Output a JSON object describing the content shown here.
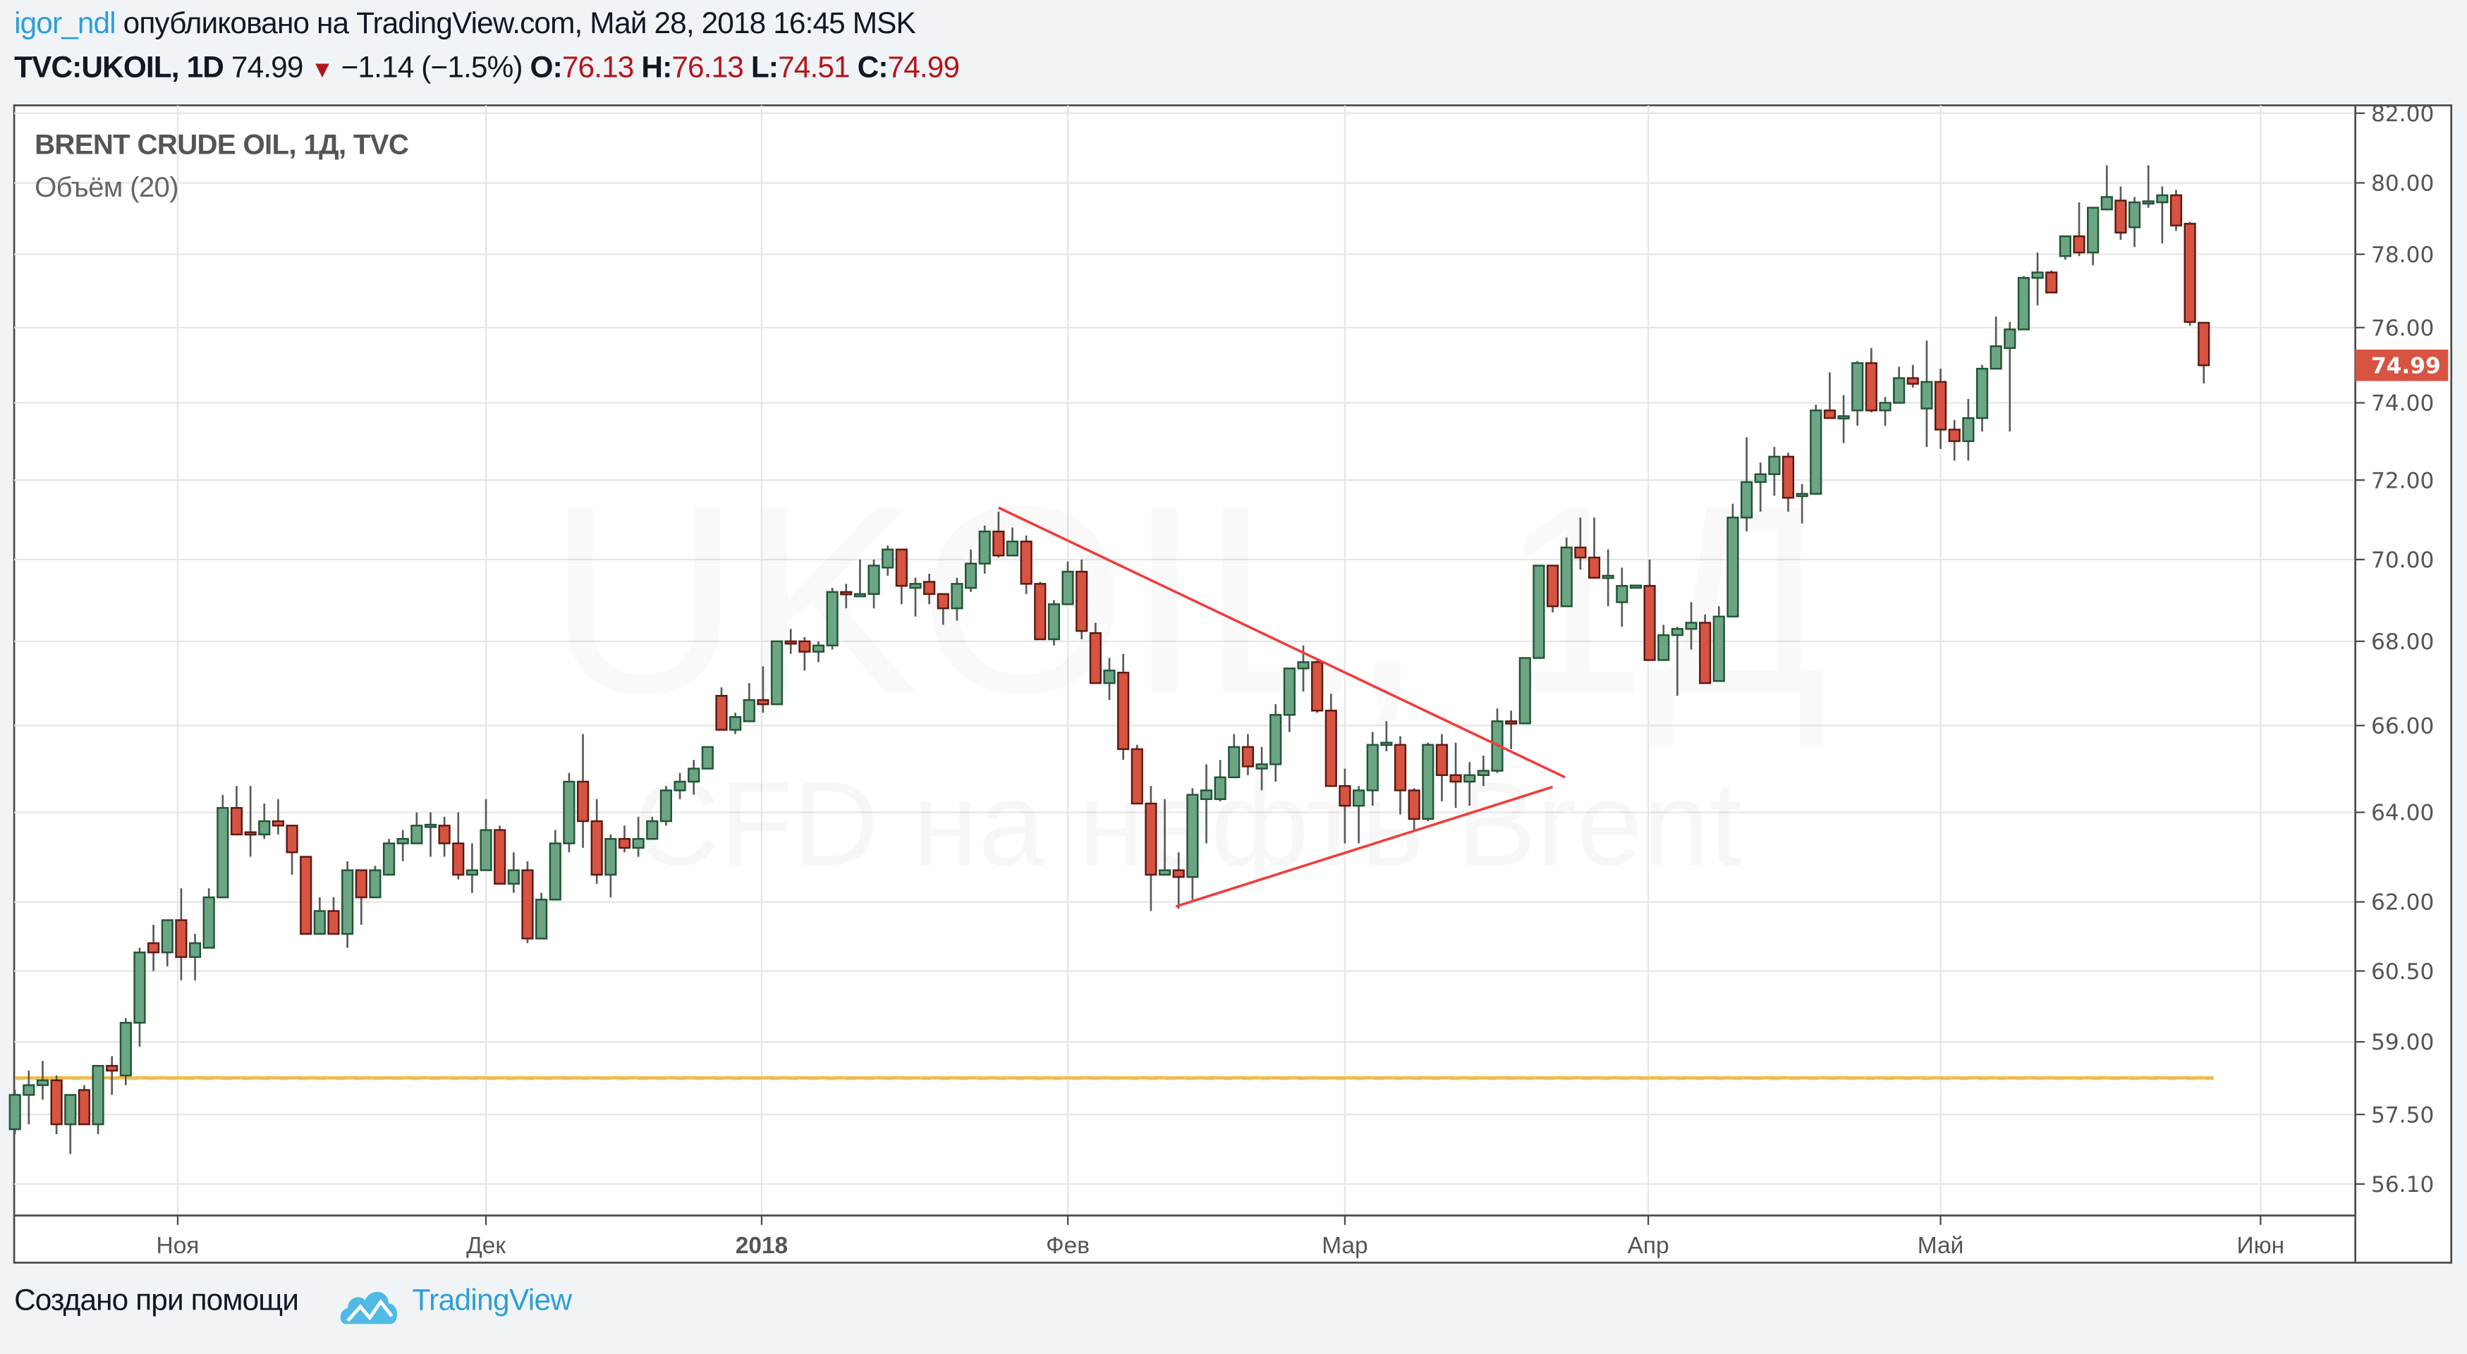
{
  "header": {
    "author": "igor_ndl",
    "published": "опубликовано на TradingView.com, Май 28, 2018 16:45 MSK",
    "symbol": "TVC:UKOIL, 1D",
    "last": "74.99",
    "change": "−1.14 (−1.5%)",
    "o_label": "O:",
    "o_value": "76.13",
    "h_label": "H:",
    "h_value": "76.13",
    "l_label": "L:",
    "l_value": "74.51",
    "c_label": "C:",
    "c_value": "74.99"
  },
  "legend": {
    "title": "BRENT CRUDE OIL, 1Д, TVC",
    "volume": "Объём (20)"
  },
  "watermark": {
    "line1": "UKOIL, 1Д",
    "line2": "CFD на нефть Brent"
  },
  "footer": {
    "created_with": "Создано при помощи",
    "brand": "TradingView"
  },
  "colors": {
    "up_fill": "#6ba583",
    "up_border": "#225437",
    "down_fill": "#d75442",
    "down_border": "#5b1a13",
    "wick": "#5a5a5a",
    "grid": "#e6e6e6",
    "drawing": "#f23b3b",
    "ma_line": "#f5b942",
    "price_tag": "#d75442",
    "brand": "#2d9fd9"
  },
  "chart_data": {
    "type": "candlestick",
    "title": "BRENT CRUDE OIL, 1Д, TVC",
    "scale": "log",
    "ylim": [
      55.6,
      82.3
    ],
    "y_ticks": [
      "82.00",
      "80.00",
      "78.00",
      "76.00",
      "74.00",
      "72.00",
      "70.00",
      "68.00",
      "66.00",
      "64.00",
      "62.00",
      "60.50",
      "59.00",
      "57.50",
      "56.10"
    ],
    "x_labels": [
      {
        "label": "Ноя",
        "x_index": 12.75,
        "bold": false
      },
      {
        "label": "Дек",
        "x_index": 35.0,
        "bold": false
      },
      {
        "label": "2018",
        "x_index": 54.9,
        "bold": true
      },
      {
        "label": "Фев",
        "x_index": 77.0,
        "bold": false
      },
      {
        "label": "Мар",
        "x_index": 97.0,
        "bold": false
      },
      {
        "label": "Апр",
        "x_index": 118.9,
        "bold": false
      },
      {
        "label": "Май",
        "x_index": 140.0,
        "bold": false
      },
      {
        "label": "Июн",
        "x_index": 163.1,
        "bold": false
      }
    ],
    "last_price": "74.99",
    "grid": true,
    "ohlc_fields": [
      "open",
      "high",
      "low",
      "close"
    ],
    "candles": [
      [
        57.2,
        58.0,
        57.1,
        57.9
      ],
      [
        57.9,
        58.4,
        57.3,
        58.1
      ],
      [
        58.1,
        58.6,
        57.8,
        58.2
      ],
      [
        58.2,
        58.3,
        57.1,
        57.3
      ],
      [
        57.3,
        57.9,
        56.7,
        57.9
      ],
      [
        58.0,
        58.1,
        57.3,
        57.3
      ],
      [
        57.3,
        58.5,
        57.1,
        58.5
      ],
      [
        58.5,
        58.7,
        57.9,
        58.4
      ],
      [
        58.3,
        59.5,
        58.1,
        59.4
      ],
      [
        59.4,
        61.0,
        58.9,
        60.9
      ],
      [
        61.1,
        61.5,
        60.5,
        60.9
      ],
      [
        60.9,
        61.6,
        60.6,
        61.6
      ],
      [
        61.6,
        62.3,
        60.3,
        60.8
      ],
      [
        60.8,
        61.3,
        60.3,
        61.1
      ],
      [
        61.0,
        62.3,
        61.0,
        62.1
      ],
      [
        62.1,
        64.4,
        62.1,
        64.1
      ],
      [
        64.1,
        64.6,
        63.5,
        63.5
      ],
      [
        63.55,
        64.6,
        63.0,
        63.5
      ],
      [
        63.5,
        64.2,
        63.4,
        63.8
      ],
      [
        63.8,
        64.3,
        63.5,
        63.7
      ],
      [
        63.7,
        63.7,
        62.6,
        63.1
      ],
      [
        63.0,
        63.0,
        61.3,
        61.3
      ],
      [
        61.3,
        62.1,
        61.3,
        61.8
      ],
      [
        61.8,
        62.1,
        61.3,
        61.3
      ],
      [
        61.3,
        62.9,
        61.0,
        62.7
      ],
      [
        62.7,
        62.7,
        61.5,
        62.1
      ],
      [
        62.1,
        62.8,
        62.1,
        62.7
      ],
      [
        62.6,
        63.4,
        62.6,
        63.3
      ],
      [
        63.3,
        63.6,
        62.9,
        63.4
      ],
      [
        63.3,
        64.0,
        63.3,
        63.7
      ],
      [
        63.7,
        64.0,
        63.0,
        63.72
      ],
      [
        63.7,
        63.9,
        63.0,
        63.3
      ],
      [
        63.3,
        64.0,
        62.5,
        62.6
      ],
      [
        62.6,
        63.3,
        62.2,
        62.7
      ],
      [
        62.7,
        64.3,
        62.7,
        63.6
      ],
      [
        63.6,
        63.7,
        62.4,
        62.4
      ],
      [
        62.4,
        63.1,
        62.2,
        62.7
      ],
      [
        62.7,
        62.9,
        61.1,
        61.2
      ],
      [
        61.2,
        62.2,
        61.2,
        62.05
      ],
      [
        62.05,
        63.6,
        62.05,
        63.3
      ],
      [
        63.3,
        64.9,
        63.1,
        64.7
      ],
      [
        64.7,
        65.8,
        63.2,
        63.8
      ],
      [
        63.8,
        64.3,
        62.4,
        62.6
      ],
      [
        62.6,
        63.5,
        62.1,
        63.4
      ],
      [
        63.4,
        63.7,
        63.1,
        63.2
      ],
      [
        63.2,
        63.9,
        63.0,
        63.4
      ],
      [
        63.4,
        63.9,
        63.4,
        63.8
      ],
      [
        63.8,
        64.6,
        63.7,
        64.5
      ],
      [
        64.5,
        64.9,
        64.3,
        64.7
      ],
      [
        64.7,
        65.2,
        64.4,
        65.0
      ],
      [
        65.0,
        65.5,
        65.0,
        65.5
      ],
      [
        66.7,
        66.9,
        65.9,
        65.9
      ],
      [
        65.9,
        66.3,
        65.8,
        66.2
      ],
      [
        66.1,
        67.0,
        66.1,
        66.6
      ],
      [
        66.6,
        67.4,
        66.3,
        66.5
      ],
      [
        66.5,
        68.0,
        66.5,
        68.0
      ],
      [
        68.0,
        68.3,
        67.7,
        67.95
      ],
      [
        68.0,
        68.1,
        67.3,
        67.75
      ],
      [
        67.75,
        68.0,
        67.5,
        67.9
      ],
      [
        67.9,
        69.3,
        67.8,
        69.2
      ],
      [
        69.2,
        69.4,
        68.8,
        69.15
      ],
      [
        69.1,
        70.0,
        69.1,
        69.15
      ],
      [
        69.15,
        70.0,
        68.8,
        69.85
      ],
      [
        69.8,
        70.35,
        69.6,
        70.25
      ],
      [
        70.25,
        70.25,
        68.9,
        69.35
      ],
      [
        69.3,
        69.55,
        68.6,
        69.4
      ],
      [
        69.45,
        69.65,
        68.9,
        69.15
      ],
      [
        69.15,
        69.15,
        68.4,
        68.8
      ],
      [
        68.8,
        69.55,
        68.5,
        69.4
      ],
      [
        69.3,
        70.25,
        69.2,
        69.9
      ],
      [
        69.9,
        70.85,
        69.65,
        70.7
      ],
      [
        70.7,
        71.2,
        70.05,
        70.1
      ],
      [
        70.1,
        70.8,
        70.1,
        70.45
      ],
      [
        70.45,
        70.6,
        69.15,
        69.4
      ],
      [
        69.4,
        69.45,
        68.05,
        68.05
      ],
      [
        68.05,
        69.0,
        67.9,
        68.9
      ],
      [
        68.9,
        69.95,
        68.9,
        69.7
      ],
      [
        69.7,
        70.0,
        68.05,
        68.25
      ],
      [
        68.2,
        68.45,
        67.0,
        67.0
      ],
      [
        67.0,
        67.6,
        66.6,
        67.3
      ],
      [
        67.25,
        67.7,
        65.2,
        65.45
      ],
      [
        65.45,
        65.55,
        64.2,
        64.2
      ],
      [
        64.2,
        64.6,
        61.8,
        62.6
      ],
      [
        62.6,
        64.3,
        62.6,
        62.7
      ],
      [
        62.7,
        63.1,
        61.85,
        62.55
      ],
      [
        62.55,
        64.55,
        62.05,
        64.4
      ],
      [
        64.3,
        65.1,
        63.3,
        64.5
      ],
      [
        64.3,
        65.2,
        64.25,
        64.8
      ],
      [
        64.8,
        65.8,
        64.8,
        65.5
      ],
      [
        65.5,
        65.8,
        64.85,
        65.05
      ],
      [
        65.0,
        65.5,
        64.5,
        65.1
      ],
      [
        65.1,
        66.5,
        64.7,
        66.25
      ],
      [
        66.25,
        67.35,
        65.85,
        67.35
      ],
      [
        67.35,
        67.9,
        66.8,
        67.5
      ],
      [
        67.5,
        67.6,
        66.3,
        66.35
      ],
      [
        66.35,
        66.75,
        64.6,
        64.6
      ],
      [
        64.6,
        65.0,
        63.3,
        64.15
      ],
      [
        64.15,
        64.6,
        63.3,
        64.5
      ],
      [
        64.5,
        65.85,
        64.15,
        65.55
      ],
      [
        65.55,
        66.1,
        65.4,
        65.6
      ],
      [
        65.55,
        65.75,
        63.95,
        64.5
      ],
      [
        64.5,
        64.55,
        63.6,
        63.85
      ],
      [
        63.85,
        65.6,
        63.8,
        65.55
      ],
      [
        65.55,
        65.8,
        64.25,
        64.85
      ],
      [
        64.85,
        65.6,
        64.1,
        64.7
      ],
      [
        64.7,
        65.15,
        64.15,
        64.85
      ],
      [
        64.85,
        65.3,
        64.6,
        64.95
      ],
      [
        64.95,
        66.4,
        64.9,
        66.1
      ],
      [
        66.1,
        66.35,
        65.45,
        66.05
      ],
      [
        66.05,
        67.6,
        66.05,
        67.6
      ],
      [
        67.6,
        69.85,
        67.6,
        69.85
      ],
      [
        69.85,
        69.85,
        68.7,
        68.85
      ],
      [
        68.85,
        70.55,
        68.85,
        70.3
      ],
      [
        70.3,
        71.05,
        69.75,
        70.05
      ],
      [
        70.05,
        71.05,
        69.55,
        69.55
      ],
      [
        69.55,
        70.25,
        68.85,
        69.6
      ],
      [
        68.95,
        69.8,
        68.35,
        69.35
      ],
      [
        69.35,
        69.37,
        69.33,
        69.36
      ],
      [
        69.35,
        70.0,
        67.55,
        67.55
      ],
      [
        67.55,
        68.4,
        67.55,
        68.15
      ],
      [
        68.15,
        68.35,
        66.7,
        68.3
      ],
      [
        68.3,
        68.95,
        67.8,
        68.45
      ],
      [
        68.45,
        68.65,
        67.0,
        67.0
      ],
      [
        67.05,
        68.85,
        67.05,
        68.6
      ],
      [
        68.6,
        71.4,
        68.6,
        71.05
      ],
      [
        71.05,
        73.1,
        70.7,
        71.95
      ],
      [
        71.95,
        72.45,
        71.2,
        72.15
      ],
      [
        72.15,
        72.85,
        71.6,
        72.6
      ],
      [
        72.6,
        72.7,
        71.2,
        71.55
      ],
      [
        71.6,
        71.9,
        70.9,
        71.65
      ],
      [
        71.65,
        73.95,
        71.65,
        73.8
      ],
      [
        73.8,
        74.8,
        73.6,
        73.6
      ],
      [
        73.6,
        74.2,
        72.95,
        73.65
      ],
      [
        73.8,
        75.1,
        73.4,
        75.05
      ],
      [
        75.05,
        75.45,
        73.75,
        73.8
      ],
      [
        73.8,
        74.15,
        73.4,
        74.0
      ],
      [
        74.0,
        74.95,
        74.0,
        74.65
      ],
      [
        74.65,
        75.0,
        74.4,
        74.5
      ],
      [
        73.85,
        75.65,
        72.85,
        74.55
      ],
      [
        74.55,
        74.9,
        72.8,
        73.3
      ],
      [
        73.3,
        73.55,
        72.5,
        73.0
      ],
      [
        73.0,
        74.1,
        72.5,
        73.6
      ],
      [
        73.6,
        75.0,
        73.25,
        74.9
      ],
      [
        74.9,
        76.3,
        74.9,
        75.5
      ],
      [
        75.45,
        76.15,
        73.25,
        75.95
      ],
      [
        75.95,
        77.4,
        75.95,
        77.35
      ],
      [
        77.35,
        78.05,
        76.6,
        77.5
      ],
      [
        77.5,
        77.55,
        76.95,
        76.95
      ],
      [
        77.95,
        78.5,
        77.85,
        78.5
      ],
      [
        78.5,
        79.45,
        77.95,
        78.05
      ],
      [
        78.05,
        79.3,
        77.7,
        79.3
      ],
      [
        79.25,
        80.5,
        79.25,
        79.6
      ],
      [
        79.5,
        79.9,
        78.4,
        78.6
      ],
      [
        78.75,
        79.6,
        78.2,
        79.45
      ],
      [
        79.45,
        80.5,
        79.3,
        79.48
      ],
      [
        79.45,
        79.9,
        78.3,
        79.65
      ],
      [
        79.65,
        79.8,
        78.65,
        78.8
      ],
      [
        78.85,
        78.9,
        76.05,
        76.15
      ],
      [
        76.13,
        76.13,
        74.51,
        74.99
      ]
    ],
    "overlay_line": {
      "name": "horizontal level",
      "price": 58.25,
      "from_index": 1,
      "to_index": 159.7
    },
    "drawings": [
      {
        "name": "triangle-upper-trendline",
        "from": [
          72,
          71.3
        ],
        "to": [
          112.9,
          64.8
        ]
      },
      {
        "name": "triangle-lower-trendline",
        "from": [
          84.8,
          61.9
        ],
        "to": [
          112.0,
          64.58
        ]
      }
    ]
  }
}
